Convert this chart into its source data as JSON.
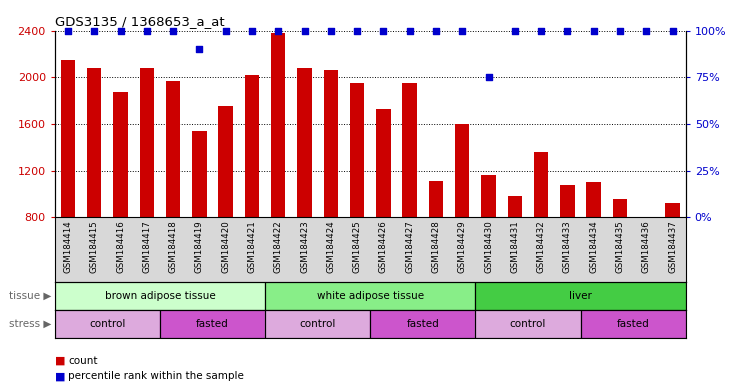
{
  "title": "GDS3135 / 1368653_a_at",
  "samples": [
    "GSM184414",
    "GSM184415",
    "GSM184416",
    "GSM184417",
    "GSM184418",
    "GSM184419",
    "GSM184420",
    "GSM184421",
    "GSM184422",
    "GSM184423",
    "GSM184424",
    "GSM184425",
    "GSM184426",
    "GSM184427",
    "GSM184428",
    "GSM184429",
    "GSM184430",
    "GSM184431",
    "GSM184432",
    "GSM184433",
    "GSM184434",
    "GSM184435",
    "GSM184436",
    "GSM184437"
  ],
  "counts": [
    2150,
    2080,
    1870,
    2080,
    1970,
    1540,
    1750,
    2020,
    2380,
    2080,
    2060,
    1950,
    1730,
    1950,
    1110,
    1600,
    1160,
    980,
    1360,
    1080,
    1100,
    960,
    800,
    920
  ],
  "percentile_ranks": [
    100,
    100,
    100,
    100,
    100,
    90,
    100,
    100,
    100,
    100,
    100,
    100,
    100,
    100,
    100,
    100,
    75,
    100,
    100,
    100,
    100,
    100,
    100,
    100
  ],
  "bar_color": "#cc0000",
  "dot_color": "#0000cc",
  "ylim_left": [
    800,
    2400
  ],
  "yticks_left": [
    800,
    1200,
    1600,
    2000,
    2400
  ],
  "ylim_right": [
    0,
    100
  ],
  "yticks_right": [
    0,
    25,
    50,
    75,
    100
  ],
  "grid_values": [
    1200,
    1600,
    2000,
    2400
  ],
  "tissue_groups": [
    {
      "label": "brown adipose tissue",
      "start": 0,
      "end": 8,
      "color": "#ccffcc"
    },
    {
      "label": "white adipose tissue",
      "start": 8,
      "end": 16,
      "color": "#88ee88"
    },
    {
      "label": "liver",
      "start": 16,
      "end": 24,
      "color": "#44cc44"
    }
  ],
  "stress_groups": [
    {
      "label": "control",
      "start": 0,
      "end": 4,
      "color": "#ddaadd"
    },
    {
      "label": "fasted",
      "start": 4,
      "end": 8,
      "color": "#cc55cc"
    },
    {
      "label": "control",
      "start": 8,
      "end": 12,
      "color": "#ddaadd"
    },
    {
      "label": "fasted",
      "start": 12,
      "end": 16,
      "color": "#cc55cc"
    },
    {
      "label": "control",
      "start": 16,
      "end": 20,
      "color": "#ddaadd"
    },
    {
      "label": "fasted",
      "start": 20,
      "end": 24,
      "color": "#cc55cc"
    }
  ],
  "tick_label_color_left": "#cc0000",
  "tick_label_color_right": "#0000cc",
  "legend_count_color": "#cc0000",
  "legend_dot_color": "#0000cc",
  "xtick_bg": "#d8d8d8"
}
